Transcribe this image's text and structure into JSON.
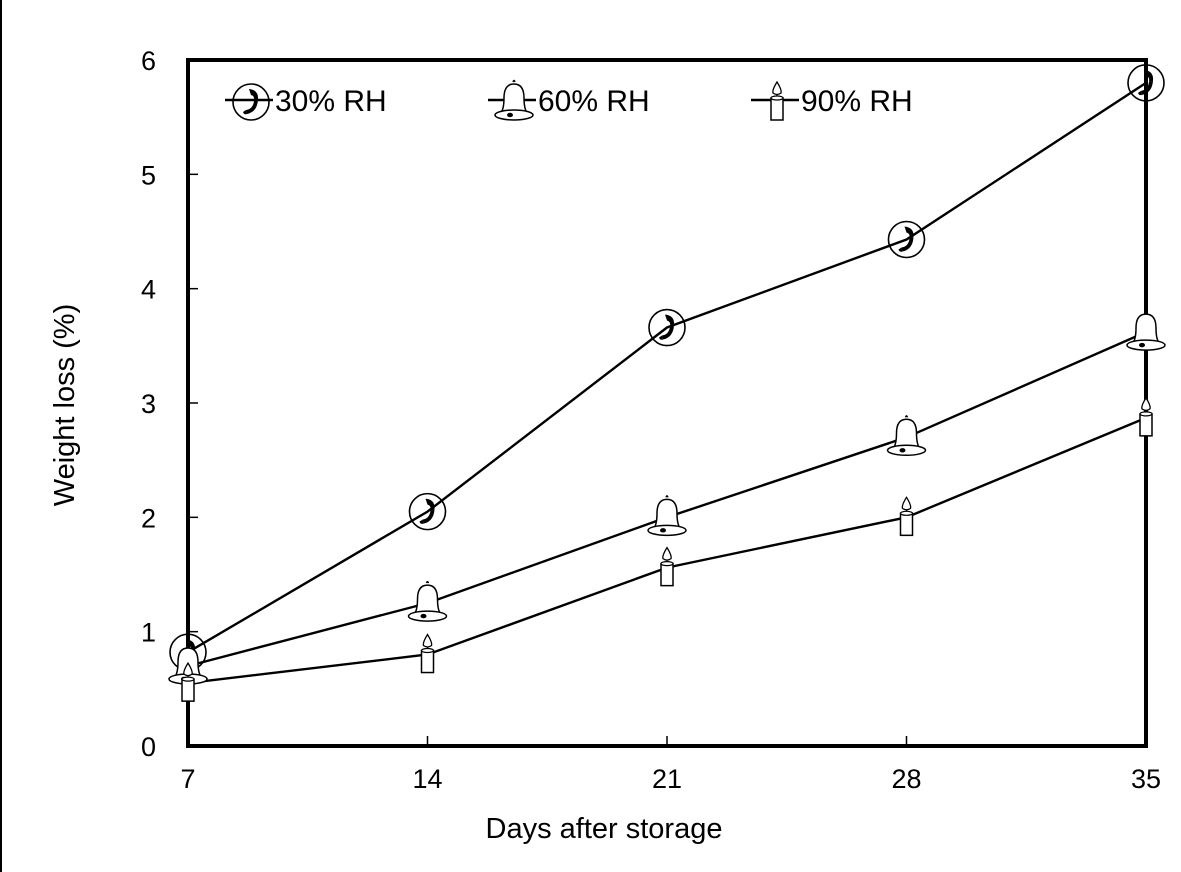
{
  "chart_data": {
    "type": "line",
    "xlabel": "Days after storage",
    "ylabel": "Weight loss (%)",
    "x": [
      7,
      14,
      21,
      28,
      35
    ],
    "xlim": [
      7,
      35
    ],
    "ylim": [
      0,
      6
    ],
    "x_ticks": [
      "7",
      "14",
      "21",
      "28",
      "35"
    ],
    "y_ticks": [
      "0",
      "1",
      "2",
      "3",
      "4",
      "5",
      "6"
    ],
    "grid": false,
    "legend_position": "top",
    "series": [
      {
        "name": "30% RH",
        "marker": "phone-icon",
        "values": [
          0.82,
          2.05,
          3.66,
          4.43,
          5.8
        ]
      },
      {
        "name": "60% RH",
        "marker": "bell-icon",
        "values": [
          0.7,
          1.25,
          2.0,
          2.7,
          3.62
        ]
      },
      {
        "name": "90% RH",
        "marker": "candle-icon",
        "values": [
          0.55,
          0.8,
          1.56,
          2.0,
          2.87
        ]
      }
    ]
  }
}
